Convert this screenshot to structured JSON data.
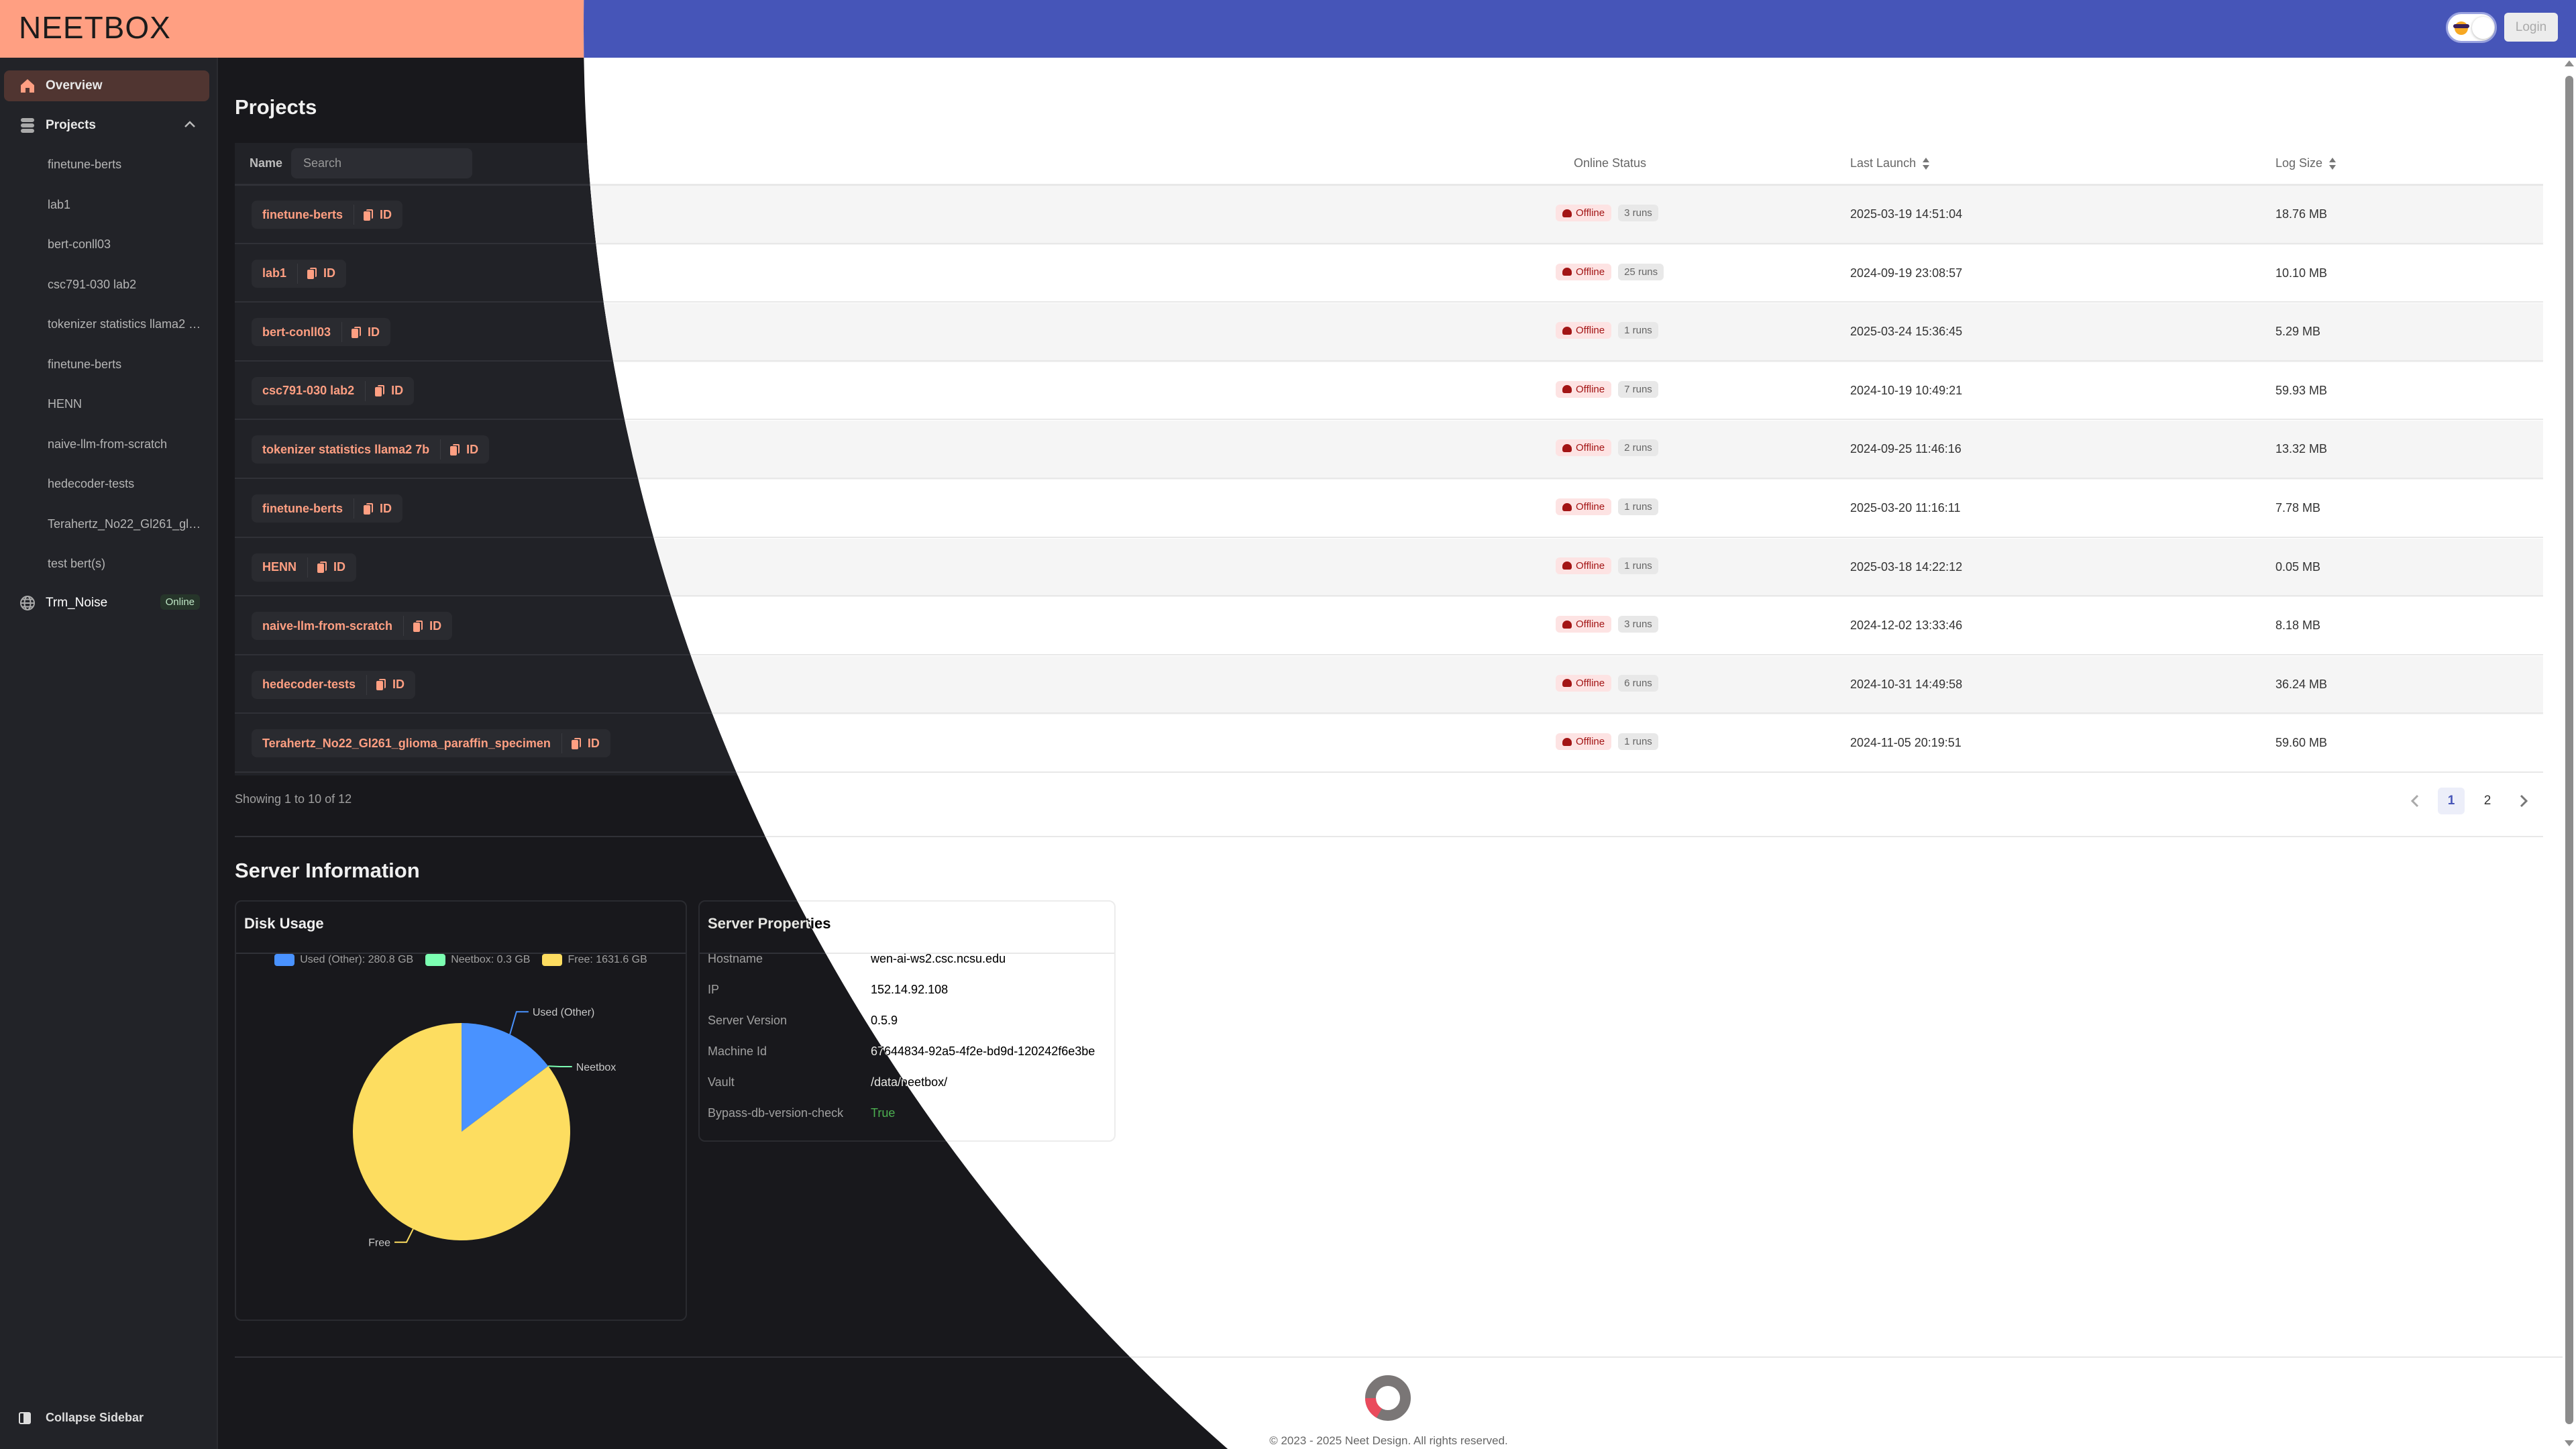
{
  "header": {
    "logo": "NEETBOX",
    "login_label": "Login",
    "theme_toggle_icon": "sunglasses-emoji-icon"
  },
  "colors": {
    "header_dark": "#ff9f82",
    "header_light": "#4655b8",
    "accent": "#ff9f82",
    "offline": "#a31515",
    "online": "#bfe8c6",
    "true_value": "#4caf50"
  },
  "sidebar": {
    "overview_label": "Overview",
    "projects_label": "Projects",
    "projects": [
      "finetune-berts",
      "lab1",
      "bert-conll03",
      "csc791-030 lab2",
      "tokenizer statistics llama2 7b",
      "finetune-berts",
      "HENN",
      "naive-llm-from-scratch",
      "hedecoder-tests",
      "Terahertz_No22_Gl261_glioma_paraffin_specimen",
      "test bert(s)"
    ],
    "server": {
      "name": "Trm_Noise",
      "status": "Online"
    },
    "collapse_label": "Collapse Sidebar"
  },
  "projects": {
    "title": "Projects",
    "columns": {
      "name": "Name",
      "status": "Online Status",
      "last_launch": "Last Launch",
      "log_size": "Log Size"
    },
    "search_placeholder": "Search",
    "id_label": "ID",
    "rows": [
      {
        "name": "finetune-berts",
        "status": "Offline",
        "runs": "3 runs",
        "last_launch": "2025-03-19 14:51:04",
        "log_size": "18.76 MB"
      },
      {
        "name": "lab1",
        "status": "Offline",
        "runs": "25 runs",
        "last_launch": "2024-09-19 23:08:57",
        "log_size": "10.10 MB"
      },
      {
        "name": "bert-conll03",
        "status": "Offline",
        "runs": "1 runs",
        "last_launch": "2025-03-24 15:36:45",
        "log_size": "5.29 MB"
      },
      {
        "name": "csc791-030 lab2",
        "status": "Offline",
        "runs": "7 runs",
        "last_launch": "2024-10-19 10:49:21",
        "log_size": "59.93 MB"
      },
      {
        "name": "tokenizer statistics llama2 7b",
        "status": "Offline",
        "runs": "2 runs",
        "last_launch": "2024-09-25 11:46:16",
        "log_size": "13.32 MB"
      },
      {
        "name": "finetune-berts",
        "status": "Offline",
        "runs": "1 runs",
        "last_launch": "2025-03-20 11:16:11",
        "log_size": "7.78 MB"
      },
      {
        "name": "HENN",
        "status": "Offline",
        "runs": "1 runs",
        "last_launch": "2025-03-18 14:22:12",
        "log_size": "0.05 MB"
      },
      {
        "name": "naive-llm-from-scratch",
        "status": "Offline",
        "runs": "3 runs",
        "last_launch": "2024-12-02 13:33:46",
        "log_size": "8.18 MB"
      },
      {
        "name": "hedecoder-tests",
        "status": "Offline",
        "runs": "6 runs",
        "last_launch": "2024-10-31 14:49:58",
        "log_size": "36.24 MB"
      },
      {
        "name": "Terahertz_No22_Gl261_glioma_paraffin_specimen",
        "status": "Offline",
        "runs": "1 runs",
        "last_launch": "2024-11-05 20:19:51",
        "log_size": "59.60 MB"
      }
    ],
    "showing": "Showing 1 to 10 of 12",
    "pagination": {
      "pages": [
        "1",
        "2"
      ],
      "current": "1"
    }
  },
  "server_info": {
    "title": "Server Information",
    "disk_usage": {
      "title": "Disk Usage",
      "legend": [
        "Used (Other): 280.8 GB",
        "Neetbox: 0.3 GB",
        "Free: 1631.6 GB"
      ]
    },
    "properties": {
      "title": "Server Properties",
      "items": [
        {
          "key": "Hostname",
          "value": "wen-ai-ws2.csc.ncsu.edu"
        },
        {
          "key": "IP",
          "value": "152.14.92.108"
        },
        {
          "key": "Server Version",
          "value": "0.5.9"
        },
        {
          "key": "Machine Id",
          "value": "67644834-92a5-4f2e-bd9d-120242f6e3be"
        },
        {
          "key": "Vault",
          "value": "/data/neetbox/"
        },
        {
          "key": "Bypass-db-version-check",
          "value": "True"
        }
      ]
    }
  },
  "chart_data": {
    "type": "pie",
    "title": "Disk Usage",
    "categories": [
      "Used (Other)",
      "Neetbox",
      "Free"
    ],
    "values": [
      280.8,
      0.3,
      1631.6
    ],
    "unit": "GB",
    "colors": [
      "#4992ff",
      "#7cffb2",
      "#fddd60"
    ],
    "legend": "top"
  },
  "footer": {
    "copyright": "© 2023 - 2025 Neet Design. All rights reserved."
  }
}
